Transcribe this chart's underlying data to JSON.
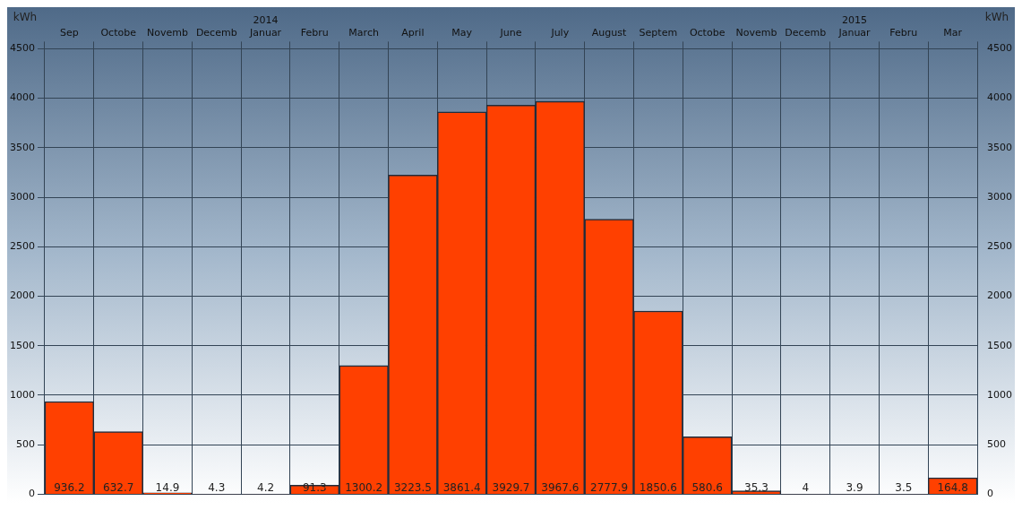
{
  "chart_data": {
    "type": "bar",
    "categories": [
      "Sep",
      "Octobe",
      "Novemb",
      "Decemb",
      "2014\nJanuar",
      "Febru",
      "March",
      "April",
      "May",
      "June",
      "July",
      "August",
      "Septem",
      "Octobe",
      "Novemb",
      "Decemb",
      "2015\nJanuar",
      "Febru",
      "Mar"
    ],
    "values": [
      936.2,
      632.7,
      14.9,
      4.3,
      4.2,
      91.3,
      1300.2,
      3223.5,
      3861.4,
      3929.7,
      3967.6,
      2777.9,
      1850.6,
      580.6,
      35.3,
      4,
      3.9,
      3.5,
      164.8
    ],
    "color": "#ff4000",
    "data_labels": true,
    "ylabel": "kWh",
    "y2label": "kWh",
    "ylim": [
      0,
      4500
    ],
    "yticks": [
      0,
      500,
      1000,
      1500,
      2000,
      2500,
      3000,
      3500,
      4000,
      4500
    ],
    "y2lim": [
      0,
      4500
    ],
    "y2ticks": [
      0,
      500,
      1000,
      1500,
      2000,
      2500,
      3000,
      3500,
      4000,
      4500
    ],
    "grid": true,
    "legend": false
  }
}
